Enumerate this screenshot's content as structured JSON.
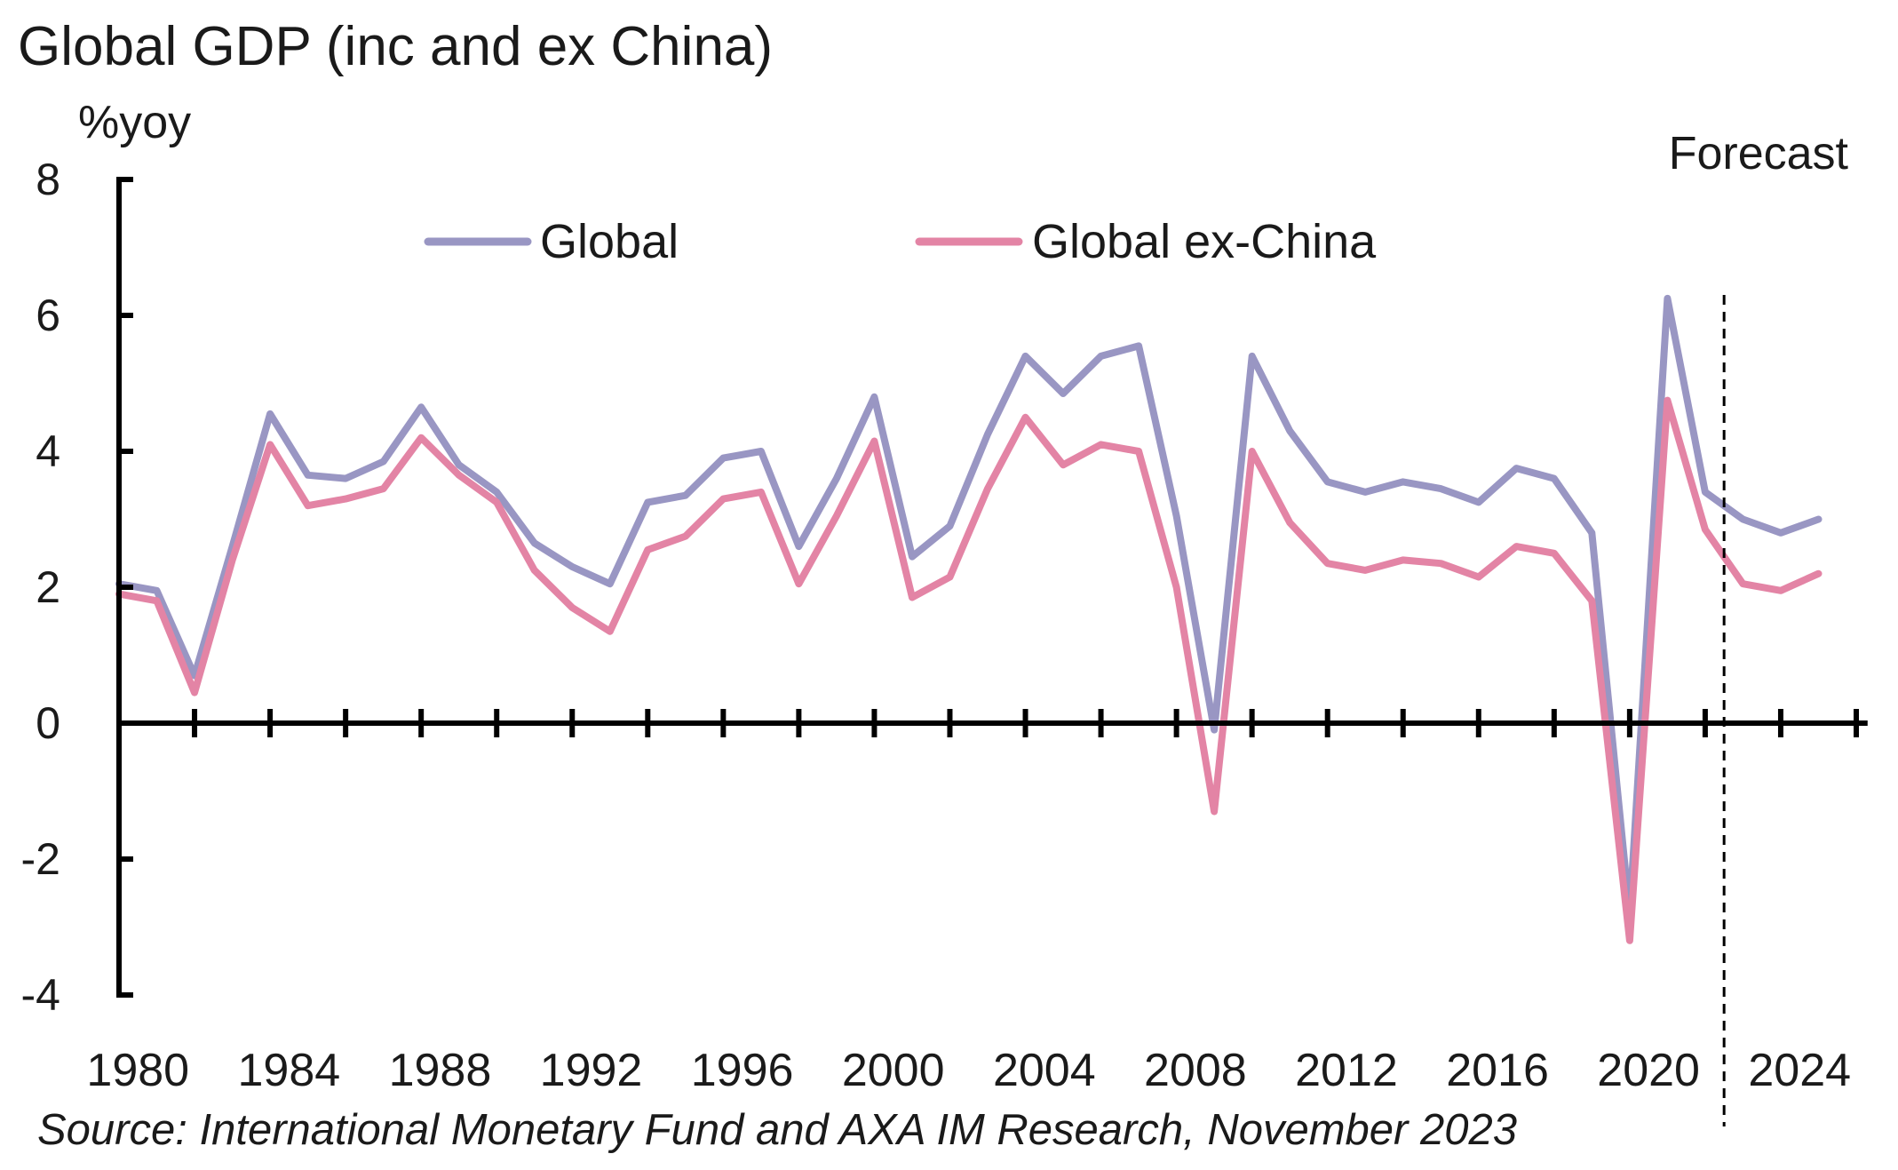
{
  "chart_data": {
    "type": "line",
    "title": "Global GDP (inc and ex China)",
    "ylabel": "%yoy",
    "xlabel": "",
    "source": "Source: International Monetary Fund and AXA IM Research, November 2023",
    "forecast_label": "Forecast",
    "forecast_start": 2022.5,
    "x": [
      1980,
      1981,
      1982,
      1983,
      1984,
      1985,
      1986,
      1987,
      1988,
      1989,
      1990,
      1991,
      1992,
      1993,
      1994,
      1995,
      1996,
      1997,
      1998,
      1999,
      2000,
      2001,
      2002,
      2003,
      2004,
      2005,
      2006,
      2007,
      2008,
      2009,
      2010,
      2011,
      2012,
      2013,
      2014,
      2015,
      2016,
      2017,
      2018,
      2019,
      2020,
      2021,
      2022,
      2023,
      2024,
      2025
    ],
    "x_ticks": [
      1980,
      1984,
      1988,
      1992,
      1996,
      2000,
      2004,
      2008,
      2012,
      2016,
      2020,
      2024
    ],
    "x_tick_labels": [
      "1980",
      "1984",
      "1988",
      "1992",
      "1996",
      "2000",
      "2004",
      "2008",
      "2012",
      "2016",
      "2020",
      "2024"
    ],
    "xlim": [
      1980,
      2026
    ],
    "ylim": [
      -4,
      8
    ],
    "y_ticks": [
      -4,
      -2,
      0,
      2,
      4,
      6,
      8
    ],
    "y_tick_labels": [
      "-4",
      "-2",
      "0",
      "2",
      "4",
      "6",
      "8"
    ],
    "grid": false,
    "legend_position": "top",
    "series": [
      {
        "name": "Global",
        "color": "#9996C3",
        "values": [
          2.05,
          1.95,
          0.7,
          2.6,
          4.55,
          3.65,
          3.6,
          3.85,
          4.65,
          3.8,
          3.4,
          2.65,
          2.3,
          2.05,
          3.25,
          3.35,
          3.9,
          4.0,
          2.6,
          3.6,
          4.8,
          2.45,
          2.9,
          4.25,
          5.4,
          4.85,
          5.4,
          5.55,
          3.05,
          -0.1,
          5.4,
          4.3,
          3.55,
          3.4,
          3.55,
          3.45,
          3.25,
          3.75,
          3.6,
          2.8,
          -2.8,
          6.25,
          3.4,
          3.0,
          2.8,
          3.0
        ]
      },
      {
        "name": "Global ex-China",
        "color": "#E384A5",
        "values": [
          1.9,
          1.8,
          0.45,
          2.4,
          4.1,
          3.2,
          3.3,
          3.45,
          4.2,
          3.65,
          3.25,
          2.25,
          1.7,
          1.35,
          2.55,
          2.75,
          3.3,
          3.4,
          2.05,
          3.05,
          4.15,
          1.85,
          2.15,
          3.45,
          4.5,
          3.8,
          4.1,
          4.0,
          2.0,
          -1.3,
          4.0,
          2.95,
          2.35,
          2.25,
          2.4,
          2.35,
          2.15,
          2.6,
          2.5,
          1.8,
          -3.2,
          4.75,
          2.85,
          2.05,
          1.95,
          2.2
        ]
      }
    ]
  }
}
